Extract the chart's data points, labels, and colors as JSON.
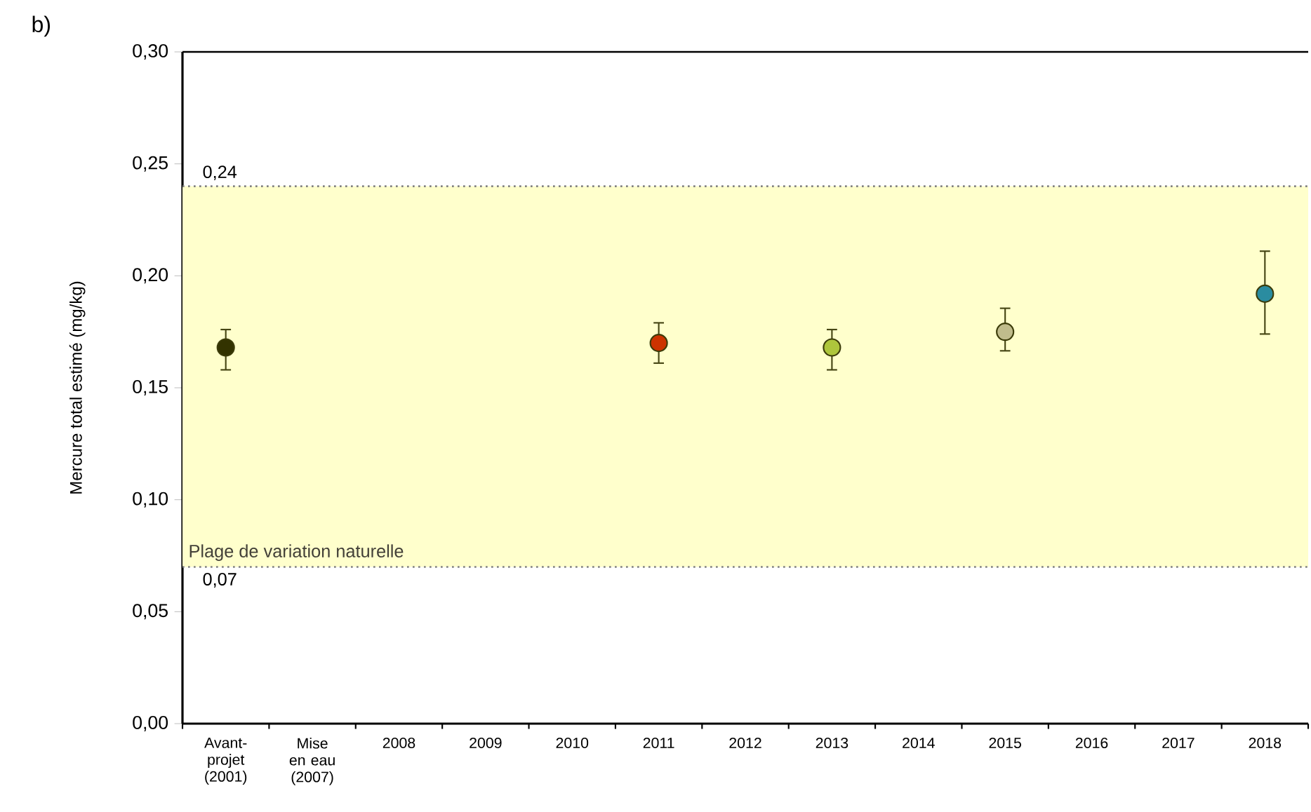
{
  "chart_data": {
    "type": "scatter",
    "ylabel": "Mercure total estimé (mg/kg)",
    "categories": [
      "Avant-projet (2001)",
      "Mise en eau (2007)",
      "2008",
      "2009",
      "2010",
      "2011",
      "2012",
      "2013",
      "2014",
      "2015",
      "2016",
      "2017",
      "2018"
    ],
    "values": [
      0.168,
      null,
      null,
      null,
      null,
      0.17,
      null,
      0.168,
      null,
      0.175,
      null,
      null,
      0.192
    ],
    "errors": [
      [
        0.158,
        0.176
      ],
      null,
      null,
      null,
      null,
      [
        0.161,
        0.179
      ],
      null,
      [
        0.158,
        0.176
      ],
      null,
      [
        0.1665,
        0.1855
      ],
      null,
      null,
      [
        0.174,
        0.211
      ]
    ],
    "colors": [
      "#333300",
      null,
      null,
      null,
      null,
      "#cc3300",
      null,
      "#aec63c",
      null,
      "#c0bc8c",
      null,
      null,
      "#2a8ca0"
    ],
    "marker": "circle",
    "ylim": [
      0,
      0.3
    ],
    "yticks": [
      {
        "value": 0,
        "label": "0,00"
      },
      {
        "value": 0.05,
        "label": "0,05"
      },
      {
        "value": 0.1,
        "label": "0,10"
      },
      {
        "value": 0.15,
        "label": "0,15"
      },
      {
        "value": 0.2,
        "label": "0,20"
      },
      {
        "value": 0.25,
        "label": "0,25"
      },
      {
        "value": 0.3,
        "label": "0,30"
      }
    ],
    "bands": [
      {
        "axis": "y",
        "from": 0.07,
        "to": 0.24,
        "label": "Plage de variation naturelle",
        "color": "#ffffcc"
      }
    ],
    "ref_lines": [
      {
        "axis": "y",
        "value": 0.24,
        "label": "0,24",
        "color": "#808080",
        "line_style": "dotted"
      },
      {
        "axis": "y",
        "value": 0.07,
        "label": "0,07",
        "color": "#808080",
        "line_style": "dotted"
      }
    ],
    "annotations": [
      "b)"
    ],
    "grid": false
  }
}
